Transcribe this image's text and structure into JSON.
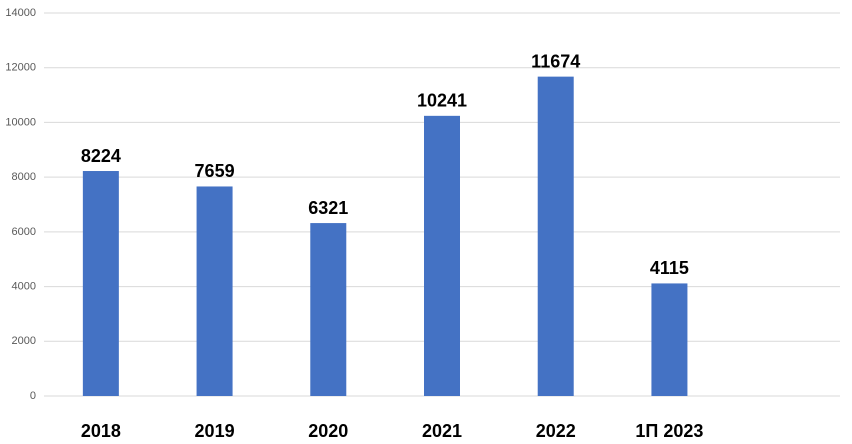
{
  "chart_data": {
    "type": "bar",
    "categories": [
      "2018",
      "2019",
      "2020",
      "2021",
      "2022",
      "1П 2023",
      null
    ],
    "values": [
      8224,
      7659,
      6321,
      10241,
      11674,
      4115,
      null
    ],
    "color": "#4472c4",
    "ylim": [
      0,
      14000
    ],
    "yticks": [
      0,
      2000,
      4000,
      6000,
      8000,
      10000,
      12000,
      14000
    ],
    "grid": true
  }
}
